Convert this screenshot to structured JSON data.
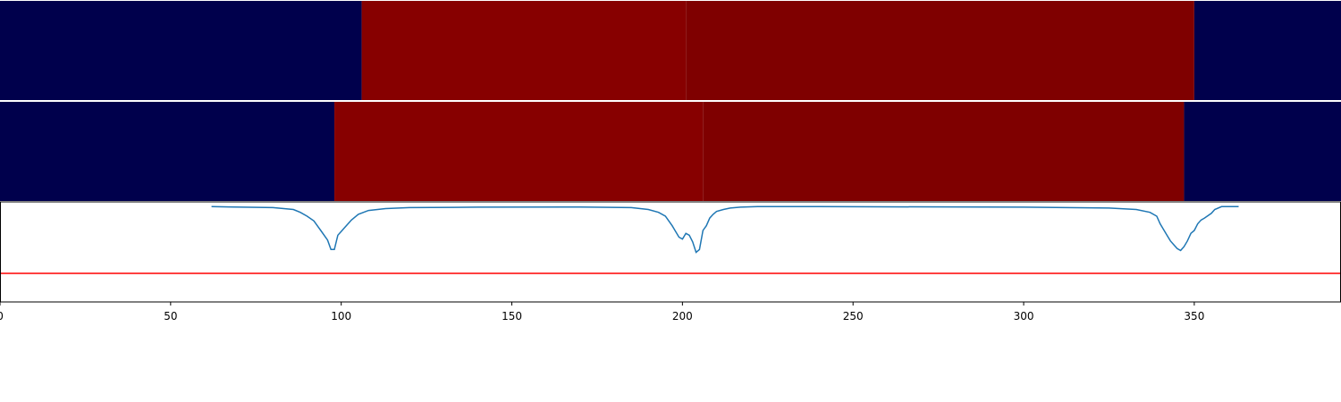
{
  "chart_data": [
    {
      "type": "heatmap",
      "xlim": [
        0,
        393
      ],
      "segments": [
        {
          "x0": 0,
          "x1": 106,
          "color": "#00004c"
        },
        {
          "x0": 106,
          "x1": 201,
          "color": "#870000"
        },
        {
          "x0": 201,
          "x1": 350,
          "color": "#7f0000"
        },
        {
          "x0": 350,
          "x1": 393,
          "color": "#00004c"
        }
      ]
    },
    {
      "type": "heatmap",
      "xlim": [
        0,
        393
      ],
      "segments": [
        {
          "x0": 0,
          "x1": 98,
          "color": "#00004c"
        },
        {
          "x0": 98,
          "x1": 206,
          "color": "#870000"
        },
        {
          "x0": 206,
          "x1": 347,
          "color": "#7f0000"
        },
        {
          "x0": 347,
          "x1": 393,
          "color": "#00004c"
        }
      ]
    },
    {
      "type": "line",
      "xlim": [
        0,
        393
      ],
      "ylim": [
        -1,
        0.05
      ],
      "x_ticks": [
        0,
        50,
        100,
        150,
        200,
        250,
        300,
        350
      ],
      "x_tick_labels": [
        "0",
        "50",
        "100",
        "150",
        "200",
        "250",
        "300",
        "350"
      ],
      "series": [
        {
          "color": "#1f77b4",
          "x": [
            62,
            80,
            86,
            88,
            90,
            92,
            94,
            96,
            97,
            98,
            99,
            101,
            103,
            105,
            108,
            113,
            120,
            140,
            170,
            185,
            190,
            193,
            195,
            197,
            199,
            200,
            201,
            202,
            203,
            204,
            205,
            206,
            207,
            208,
            209,
            210,
            212,
            214,
            217,
            222,
            240,
            300,
            325,
            333,
            337,
            339,
            340,
            341,
            342,
            343,
            344,
            345,
            346,
            347,
            348,
            349,
            350,
            351,
            352,
            353,
            355,
            356,
            358,
            360,
            362,
            363
          ],
          "y": [
            0,
            -0.01,
            -0.03,
            -0.06,
            -0.1,
            -0.15,
            -0.25,
            -0.35,
            -0.45,
            -0.45,
            -0.3,
            -0.22,
            -0.14,
            -0.08,
            -0.04,
            -0.02,
            -0.01,
            -0.005,
            -0.003,
            -0.01,
            -0.03,
            -0.06,
            -0.1,
            -0.2,
            -0.32,
            -0.34,
            -0.28,
            -0.3,
            -0.37,
            -0.48,
            -0.45,
            -0.25,
            -0.2,
            -0.12,
            -0.08,
            -0.05,
            -0.03,
            -0.015,
            -0.005,
            0,
            0,
            -0.005,
            -0.015,
            -0.03,
            -0.06,
            -0.1,
            -0.18,
            -0.24,
            -0.3,
            -0.36,
            -0.4,
            -0.44,
            -0.46,
            -0.42,
            -0.36,
            -0.28,
            -0.25,
            -0.18,
            -0.14,
            -0.12,
            -0.07,
            -0.03,
            0,
            0,
            0,
            0
          ]
        },
        {
          "color": "#ff0000",
          "x": [
            0,
            393
          ],
          "y": [
            -0.7,
            -0.7
          ]
        }
      ]
    }
  ]
}
